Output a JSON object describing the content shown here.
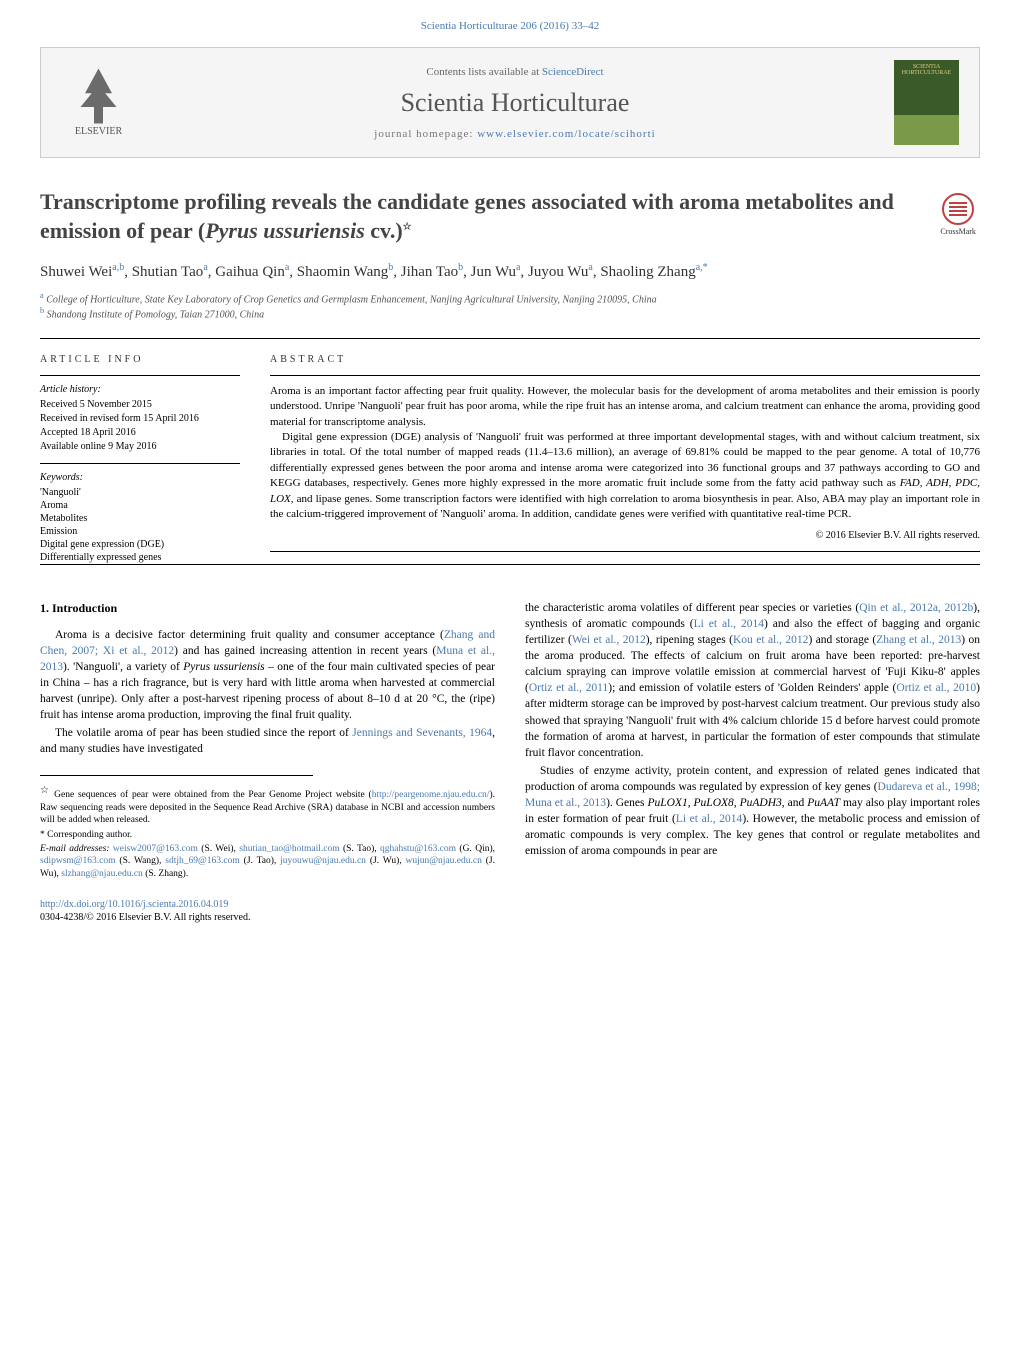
{
  "header": {
    "citation": "Scientia Horticulturae 206 (2016) 33–42",
    "contents_available": "Contents lists available at",
    "sciencedirect": "ScienceDirect",
    "journal_name": "Scientia Horticulturae",
    "homepage_label": "journal homepage:",
    "homepage_link": "www.elsevier.com/locate/scihorti",
    "publisher": "ELSEVIER",
    "cover_text": "SCIENTIA HORTICULTURAE",
    "crossmark": "CrossMark"
  },
  "article": {
    "title_text": "Transcriptome profiling reveals the candidate genes associated with aroma metabolites and emission of pear (",
    "title_species": "Pyrus ussuriensis",
    "title_end": " cv.)",
    "star": "☆",
    "authors_html": "Shuwei Wei<sup>a,b</sup>, Shutian Tao<sup>a</sup>, Gaihua Qin<sup>a</sup>, Shaomin Wang<sup>b</sup>, Jihan Tao<sup>b</sup>, Jun Wu<sup>a</sup>, Juyou Wu<sup>a</sup>, Shaoling Zhang<sup>a,*</sup>",
    "affil_a_sup": "a",
    "affil_a": "College of Horticulture, State Key Laboratory of Crop Genetics and Germplasm Enhancement, Nanjing Agricultural University, Nanjing 210095, China",
    "affil_b_sup": "b",
    "affil_b": "Shandong Institute of Pomology, Taian 271000, China"
  },
  "info": {
    "section": "ARTICLE INFO",
    "history_header": "Article history:",
    "history": [
      "Received 5 November 2015",
      "Received in revised form 15 April 2016",
      "Accepted 18 April 2016",
      "Available online 9 May 2016"
    ],
    "keywords_header": "Keywords:",
    "keywords": [
      "'Nanguoli'",
      "Aroma",
      "Metabolites",
      "Emission",
      "Digital gene expression (DGE)",
      "Differentially expressed genes"
    ]
  },
  "abstract": {
    "section": "ABSTRACT",
    "p1": "Aroma is an important factor affecting pear fruit quality. However, the molecular basis for the development of aroma metabolites and their emission is poorly understood. Unripe 'Nanguoli' pear fruit has poor aroma, while the ripe fruit has an intense aroma, and calcium treatment can enhance the aroma, providing good material for transcriptome analysis.",
    "p2_a": "Digital gene expression (DGE) analysis of 'Nanguoli' fruit was performed at three important developmental stages, with and without calcium treatment, six libraries in total. Of the total number of mapped reads (11.4–13.6 million), an average of 69.81% could be mapped to the pear genome. A total of 10,776 differentially expressed genes between the poor aroma and intense aroma were categorized into 36 functional groups and 37 pathways according to GO and KEGG databases, respectively. Genes more highly expressed in the more aromatic fruit include some from the fatty acid pathway such as ",
    "p2_genes": "FAD, ADH, PDC, LOX",
    "p2_b": ", and lipase genes. Some transcription factors were identified with high correlation to aroma biosynthesis in pear. Also, ABA may play an important role in the calcium-triggered improvement of 'Nanguoli' aroma. In addition, candidate genes were verified with quantitative real-time PCR.",
    "copyright": "© 2016 Elsevier B.V. All rights reserved."
  },
  "intro": {
    "section": "1. Introduction",
    "p1_a": "Aroma is a decisive factor determining fruit quality and consumer acceptance (",
    "p1_c1": "Zhang and Chen, 2007; Xi et al., 2012",
    "p1_b": ") and has gained increasing attention in recent years (",
    "p1_c2": "Muna et al., 2013",
    "p1_c": "). 'Nanguoli', a variety of ",
    "p1_species": "Pyrus ussuriensis",
    "p1_d": " – one of the four main cultivated species of pear in China – has a rich fragrance, but is very hard with little aroma when harvested at commercial harvest (unripe). Only after a post-harvest ripening process of about 8–10 d at 20 °C, the (ripe) fruit has intense aroma production, improving the final fruit quality.",
    "p2_a": "The volatile aroma of pear has been studied since the report of ",
    "p2_c1": "Jennings and Sevenants, 1964",
    "p2_b": ", and many studies have investigated",
    "col2_p1_a": "the characteristic aroma volatiles of different pear species or varieties (",
    "col2_c1": "Qin et al., 2012a, 2012b",
    "col2_p1_b": "), synthesis of aromatic compounds (",
    "col2_c2": "Li et al., 2014",
    "col2_p1_c": ") and also the effect of bagging and organic fertilizer (",
    "col2_c3": "Wei et al., 2012",
    "col2_p1_d": "), ripening stages (",
    "col2_c4": "Kou et al., 2012",
    "col2_p1_e": ") and storage (",
    "col2_c5": "Zhang et al., 2013",
    "col2_p1_f": ") on the aroma produced. The effects of calcium on fruit aroma have been reported: pre-harvest calcium spraying can improve volatile emission at commercial harvest of 'Fuji Kiku-8' apples (",
    "col2_c6": "Ortiz et al., 2011",
    "col2_p1_g": "); and emission of volatile esters of 'Golden Reinders' apple (",
    "col2_c7": "Ortiz et al., 2010",
    "col2_p1_h": ") after midterm storage can be improved by post-harvest calcium treatment. Our previous study also showed that spraying 'Nanguoli' fruit with 4% calcium chloride 15 d before harvest could promote the formation of aroma at harvest, in particular the formation of ester compounds that stimulate fruit flavor concentration.",
    "col2_p2_a": "Studies of enzyme activity, protein content, and expression of related genes indicated that production of aroma compounds was regulated by expression of key genes (",
    "col2_p2_c1": "Dudareva et al., 1998; Muna et al., 2013",
    "col2_p2_b": "). Genes ",
    "col2_p2_genes": "PuLOX1, PuLOX8, PuADH3",
    "col2_p2_c": ", and ",
    "col2_p2_gene2": "PuAAT",
    "col2_p2_d": " may also play important roles in ester formation of pear fruit (",
    "col2_p2_c2": "Li et al., 2014",
    "col2_p2_e": "). However, the metabolic process and emission of aromatic compounds is very complex. The key genes that control or regulate metabolites and emission of aroma compounds in pear are"
  },
  "footnotes": {
    "star": "☆",
    "note": "Gene sequences of pear were obtained from the Pear Genome Project website (",
    "note_link": "http://peargenome.njau.edu.cn/",
    "note_end": "). Raw sequencing reads were deposited in the Sequence Read Archive (SRA) database in NCBI and accession numbers will be added when released.",
    "corresp_mark": "*",
    "corresp": "Corresponding author.",
    "email_label": "E-mail addresses:",
    "emails": [
      {
        "addr": "weisw2007@163.com",
        "who": "(S. Wei)"
      },
      {
        "addr": "shutian_tao@hotmail.com",
        "who": "(S. Tao)"
      },
      {
        "addr": "qghahstu@163.com",
        "who": "(G. Qin)"
      },
      {
        "addr": "sdipwsm@163.com",
        "who": "(S. Wang)"
      },
      {
        "addr": "sdtjh_69@163.com",
        "who": "(J. Tao)"
      },
      {
        "addr": "juyouwu@njau.edu.cn",
        "who": "(J. Wu)"
      },
      {
        "addr": "wujun@njau.edu.cn",
        "who": "(J. Wu)"
      },
      {
        "addr": "slzhang@njau.edu.cn",
        "who": "(S. Zhang)"
      }
    ]
  },
  "doi": {
    "link": "http://dx.doi.org/10.1016/j.scienta.2016.04.019",
    "issn": "0304-4238/© 2016 Elsevier B.V. All rights reserved."
  },
  "colors": {
    "link": "#4a7ab0",
    "text": "#000000",
    "heading": "#444444"
  }
}
